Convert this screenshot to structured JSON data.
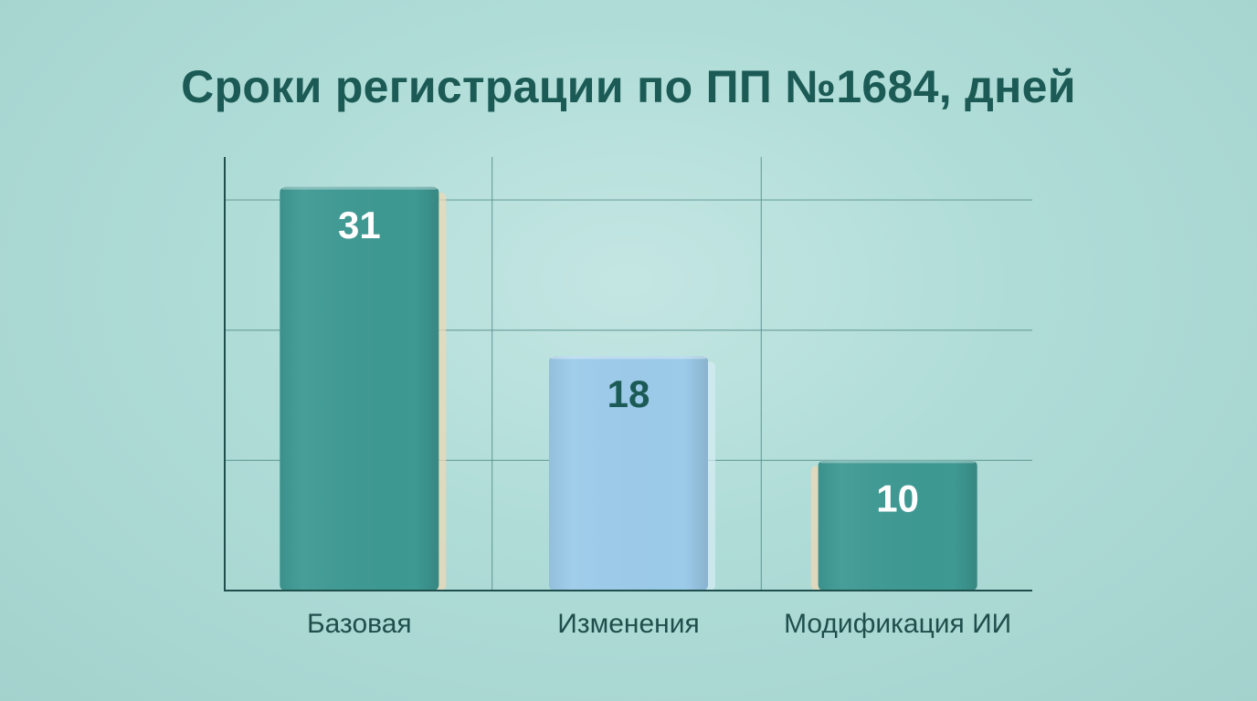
{
  "chart_data": {
    "type": "bar",
    "title": "Сроки регистрации по ПП №1684, дней",
    "categories": [
      "Базовая",
      "Изменения",
      "Модификация ИИ"
    ],
    "values": [
      31,
      18,
      10
    ],
    "ylim": [
      0,
      33.3
    ],
    "grid": true,
    "colors": [
      "#3e9993",
      "#9ccbea",
      "#3e9993"
    ],
    "label_colors": [
      "#ffffff",
      "#1b5a55",
      "#ffffff"
    ]
  }
}
